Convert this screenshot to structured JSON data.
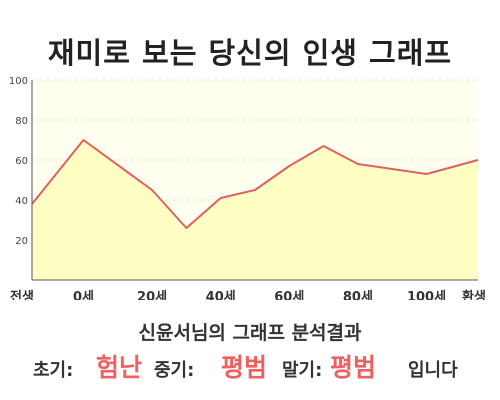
{
  "title": "재미로 보는 당신의 인생 그래프",
  "chart_data": {
    "type": "area",
    "x_labels": [
      "전생",
      "0세",
      "20세",
      "40세",
      "60세",
      "80세",
      "100세",
      "환생"
    ],
    "x": [
      -15,
      0,
      20,
      30,
      40,
      50,
      60,
      70,
      80,
      100,
      115
    ],
    "y": [
      38,
      70,
      45,
      26,
      41,
      45,
      57,
      67,
      58,
      53,
      60
    ],
    "xlim": [
      -15,
      115
    ],
    "ylim": [
      0,
      100
    ],
    "yticks": [
      20,
      40,
      60,
      80,
      100
    ],
    "grid": true,
    "colors": {
      "line": "#e06060",
      "fill": "#ffffc4",
      "plot_bg": "#fffff0",
      "grid": "#e8e8d8",
      "axis": "#555555"
    }
  },
  "result": {
    "heading": "신윤서님의 그래프 분석결과",
    "early_label": "초기:",
    "early_value": "험난",
    "mid_label": "중기:",
    "mid_value": "평범",
    "late_label": "말기:",
    "late_value": "평범",
    "suffix": "입니다"
  }
}
